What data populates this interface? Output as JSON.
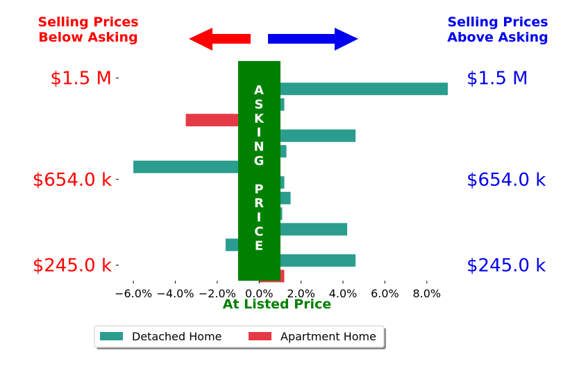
{
  "chart_data": {
    "type": "bar",
    "orientation": "horizontal",
    "x_tick_labels": [
      "−6.0%",
      "−4.0%",
      "−2.0%",
      "0.0%",
      "2.0%",
      "4.0%",
      "6.0%",
      "8.0%"
    ],
    "x_ticks": [
      -6,
      -4,
      -2,
      0,
      2,
      4,
      6,
      8
    ],
    "xlim": [
      -6.7,
      9
    ],
    "ylim": [
      0,
      14
    ],
    "xlabel": "At Listed Price",
    "left_y_tick_labels": [
      "$1.5 M",
      "$654.0 k",
      "$245.0 k"
    ],
    "right_y_tick_labels": [
      "$1.5 M",
      "$654.0 k",
      "$245.0 k"
    ],
    "y_tick_positions": [
      13.0,
      6.5,
      1.0
    ],
    "series": [
      {
        "name": "Detached Home",
        "color": "#2a9d8f",
        "points": [
          {
            "y": 12.3,
            "value": 9.0
          },
          {
            "y": 11.3,
            "value": 1.2
          },
          {
            "y": 9.3,
            "value": 4.6
          },
          {
            "y": 8.3,
            "value": 1.3
          },
          {
            "y": 7.3,
            "value": -6.0
          },
          {
            "y": 6.3,
            "value": 1.2
          },
          {
            "y": 5.3,
            "value": 1.5
          },
          {
            "y": 4.3,
            "value": 1.1
          },
          {
            "y": 3.3,
            "value": 4.2
          },
          {
            "y": 2.3,
            "value": -1.6
          },
          {
            "y": 1.3,
            "value": 4.6
          }
        ]
      },
      {
        "name": "Apartment Home",
        "color": "#e63946",
        "points": [
          {
            "y": 10.3,
            "value": -3.5
          },
          {
            "y": 0.3,
            "value": 1.2
          }
        ]
      }
    ],
    "legend": {
      "placement": "bottom-center",
      "entries": [
        "Detached Home",
        "Apartment Home"
      ]
    }
  },
  "annotations": {
    "left_header_line1": "Selling Prices",
    "left_header_line2": "Below Asking",
    "right_header_line1": "Selling Prices",
    "right_header_line2": "Above Asking",
    "asking_price_letters": [
      "A",
      "S",
      "K",
      "I",
      "N",
      "G",
      "",
      "P",
      "R",
      "I",
      "C",
      "E"
    ],
    "left_color": "#ff0000",
    "right_color": "#0000ee",
    "band_color": "#008000"
  }
}
